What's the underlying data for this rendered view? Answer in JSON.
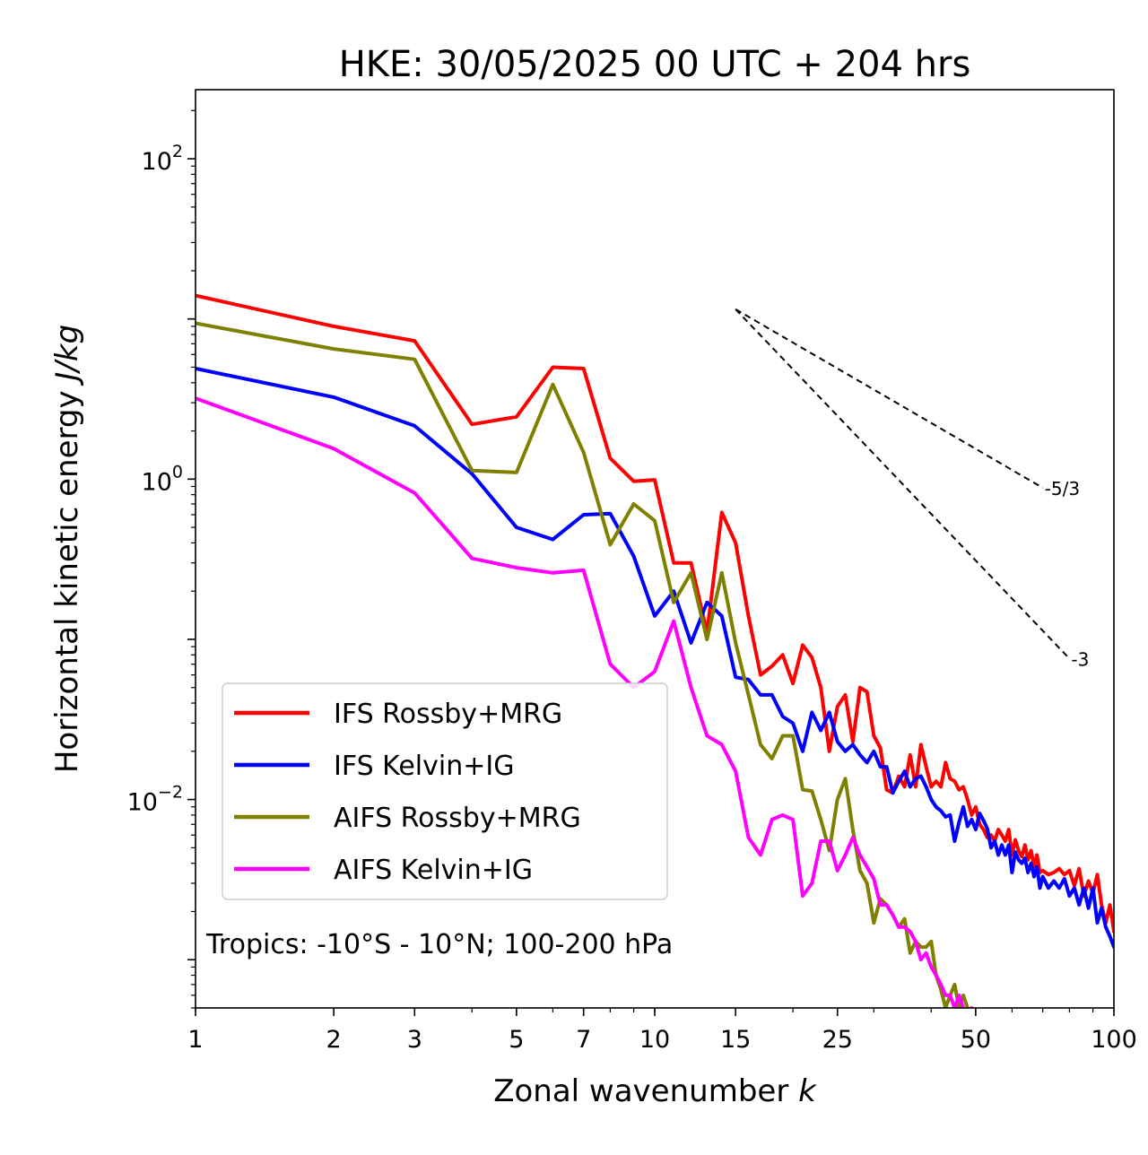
{
  "chart_data": {
    "type": "line",
    "title": "HKE: 30/05/2025 00 UTC + 204 hrs",
    "xlabel": "Zonal wavenumber",
    "xlabel_var": "k",
    "ylabel": "Horizontal kinetic energy",
    "ylabel_unit": "J/kg",
    "xscale": "log",
    "yscale": "log",
    "xlim": [
      1,
      100
    ],
    "ylim": [
      0.0005,
      270
    ],
    "x_ticks": [
      1,
      2,
      3,
      5,
      7,
      10,
      15,
      25,
      50,
      100
    ],
    "y_ticks": [
      {
        "value": 100,
        "base": "10",
        "exp": "2"
      },
      {
        "value": 1,
        "base": "10",
        "exp": "0"
      },
      {
        "value": 0.01,
        "base": "10",
        "exp": "−2"
      }
    ],
    "grid": false,
    "legend_position": "lower-left",
    "annotation": "Tropics: -10°S - 10°N; 100-200 hPa",
    "reference_lines": [
      {
        "label": "-5/3",
        "slope": -1.6667,
        "x_start": 15,
        "y_start": 11.5,
        "x_end": 70
      },
      {
        "label": "-3",
        "slope": -3,
        "x_start": 15,
        "y_start": 11.5,
        "x_end": 80
      }
    ],
    "series": [
      {
        "name": "IFS Rossby+MRG",
        "color": "#ff0000",
        "points": [
          [
            1,
            14.0
          ],
          [
            2,
            9.0
          ],
          [
            3,
            7.3
          ],
          [
            4,
            2.2
          ],
          [
            5,
            2.45
          ],
          [
            6,
            5.0
          ],
          [
            7,
            4.9
          ],
          [
            8,
            1.35
          ],
          [
            9,
            0.97
          ],
          [
            10,
            0.99
          ],
          [
            11,
            0.3
          ],
          [
            12,
            0.3
          ],
          [
            13,
            0.11
          ],
          [
            14,
            0.62
          ],
          [
            15,
            0.4
          ],
          [
            16,
            0.14
          ],
          [
            17,
            0.06
          ],
          [
            18,
            0.068
          ],
          [
            19,
            0.08
          ],
          [
            20,
            0.053
          ],
          [
            21,
            0.092
          ],
          [
            22,
            0.077
          ],
          [
            23,
            0.05
          ],
          [
            24,
            0.02
          ],
          [
            25,
            0.038
          ],
          [
            26,
            0.045
          ],
          [
            27,
            0.023
          ],
          [
            28,
            0.05
          ],
          [
            29,
            0.047
          ],
          [
            30,
            0.025
          ],
          [
            31,
            0.021
          ],
          [
            32,
            0.0115
          ],
          [
            33,
            0.011
          ],
          [
            34,
            0.014
          ],
          [
            35,
            0.012
          ],
          [
            36,
            0.019
          ],
          [
            37,
            0.012
          ],
          [
            38,
            0.022
          ],
          [
            39,
            0.016
          ],
          [
            40,
            0.012
          ],
          [
            41,
            0.013
          ],
          [
            42,
            0.012
          ],
          [
            43,
            0.017
          ],
          [
            44,
            0.0135
          ],
          [
            45,
            0.013
          ],
          [
            46,
            0.0115
          ],
          [
            47,
            0.012
          ],
          [
            48,
            0.01
          ],
          [
            49,
            0.008
          ],
          [
            50,
            0.009
          ],
          [
            51,
            0.007
          ],
          [
            52,
            0.0065
          ],
          [
            53,
            0.0058
          ],
          [
            54,
            0.006
          ],
          [
            55,
            0.0055
          ],
          [
            56,
            0.0065
          ],
          [
            57,
            0.006
          ],
          [
            58,
            0.0055
          ],
          [
            59,
            0.0065
          ],
          [
            60,
            0.0045
          ],
          [
            61,
            0.0056
          ],
          [
            62,
            0.0048
          ],
          [
            63,
            0.0044
          ],
          [
            64,
            0.0052
          ],
          [
            65,
            0.0042
          ],
          [
            66,
            0.0048
          ],
          [
            67,
            0.0038
          ],
          [
            68,
            0.0045
          ],
          [
            69,
            0.0035
          ],
          [
            70,
            0.0036
          ],
          [
            72,
            0.0034
          ],
          [
            74,
            0.0035
          ],
          [
            76,
            0.0037
          ],
          [
            78,
            0.0034
          ],
          [
            80,
            0.0036
          ],
          [
            82,
            0.0029
          ],
          [
            84,
            0.0037
          ],
          [
            86,
            0.0025
          ],
          [
            88,
            0.0031
          ],
          [
            90,
            0.0026
          ],
          [
            92,
            0.0034
          ],
          [
            94,
            0.0022
          ],
          [
            96,
            0.0017
          ],
          [
            98,
            0.0022
          ],
          [
            100,
            0.0015
          ]
        ]
      },
      {
        "name": "IFS Kelvin+IG",
        "color": "#0000ff",
        "points": [
          [
            1,
            4.9
          ],
          [
            2,
            3.25
          ],
          [
            3,
            2.15
          ],
          [
            4,
            1.08
          ],
          [
            5,
            0.5
          ],
          [
            6,
            0.42
          ],
          [
            7,
            0.6
          ],
          [
            8,
            0.61
          ],
          [
            9,
            0.33
          ],
          [
            10,
            0.14
          ],
          [
            11,
            0.2
          ],
          [
            12,
            0.095
          ],
          [
            13,
            0.17
          ],
          [
            14,
            0.14
          ],
          [
            15,
            0.058
          ],
          [
            16,
            0.056
          ],
          [
            17,
            0.045
          ],
          [
            18,
            0.045
          ],
          [
            19,
            0.033
          ],
          [
            20,
            0.03
          ],
          [
            21,
            0.02
          ],
          [
            22,
            0.035
          ],
          [
            23,
            0.027
          ],
          [
            24,
            0.035
          ],
          [
            25,
            0.023
          ],
          [
            26,
            0.02
          ],
          [
            27,
            0.022
          ],
          [
            28,
            0.019
          ],
          [
            29,
            0.017
          ],
          [
            30,
            0.02
          ],
          [
            31,
            0.016
          ],
          [
            32,
            0.016
          ],
          [
            33,
            0.011
          ],
          [
            34,
            0.013
          ],
          [
            35,
            0.015
          ],
          [
            36,
            0.012
          ],
          [
            37,
            0.0135
          ],
          [
            38,
            0.014
          ],
          [
            39,
            0.012
          ],
          [
            40,
            0.01
          ],
          [
            41,
            0.009
          ],
          [
            42,
            0.0085
          ],
          [
            43,
            0.0078
          ],
          [
            44,
            0.008
          ],
          [
            45,
            0.0055
          ],
          [
            46,
            0.0072
          ],
          [
            47,
            0.009
          ],
          [
            48,
            0.0068
          ],
          [
            49,
            0.0075
          ],
          [
            50,
            0.0065
          ],
          [
            51,
            0.0082
          ],
          [
            52,
            0.0074
          ],
          [
            53,
            0.0066
          ],
          [
            54,
            0.005
          ],
          [
            55,
            0.0055
          ],
          [
            56,
            0.0045
          ],
          [
            57,
            0.0052
          ],
          [
            58,
            0.0045
          ],
          [
            59,
            0.0052
          ],
          [
            60,
            0.0035
          ],
          [
            61,
            0.0047
          ],
          [
            62,
            0.0042
          ],
          [
            63,
            0.004
          ],
          [
            64,
            0.0043
          ],
          [
            65,
            0.0035
          ],
          [
            66,
            0.004
          ],
          [
            67,
            0.0033
          ],
          [
            68,
            0.0038
          ],
          [
            69,
            0.0028
          ],
          [
            70,
            0.0033
          ],
          [
            72,
            0.0028
          ],
          [
            74,
            0.0031
          ],
          [
            76,
            0.0028
          ],
          [
            78,
            0.0032
          ],
          [
            80,
            0.0025
          ],
          [
            82,
            0.0028
          ],
          [
            84,
            0.0022
          ],
          [
            86,
            0.0028
          ],
          [
            88,
            0.0021
          ],
          [
            90,
            0.0028
          ],
          [
            92,
            0.0017
          ],
          [
            94,
            0.0021
          ],
          [
            96,
            0.0016
          ],
          [
            98,
            0.0014
          ],
          [
            100,
            0.0012
          ]
        ]
      },
      {
        "name": "AIFS Rossby+MRG",
        "color": "#808000",
        "points": [
          [
            1,
            9.4
          ],
          [
            2,
            6.5
          ],
          [
            3,
            5.6
          ],
          [
            4,
            1.13
          ],
          [
            5,
            1.1
          ],
          [
            6,
            3.9
          ],
          [
            7,
            1.47
          ],
          [
            8,
            0.39
          ],
          [
            9,
            0.7
          ],
          [
            10,
            0.55
          ],
          [
            11,
            0.17
          ],
          [
            12,
            0.26
          ],
          [
            13,
            0.1
          ],
          [
            14,
            0.26
          ],
          [
            15,
            0.095
          ],
          [
            16,
            0.045
          ],
          [
            17,
            0.022
          ],
          [
            18,
            0.018
          ],
          [
            19,
            0.025
          ],
          [
            20,
            0.025
          ],
          [
            21,
            0.0115
          ],
          [
            22,
            0.0113
          ],
          [
            23,
            0.0075
          ],
          [
            24,
            0.0048
          ],
          [
            25,
            0.01
          ],
          [
            26,
            0.0135
          ],
          [
            27,
            0.0065
          ],
          [
            28,
            0.0036
          ],
          [
            29,
            0.003
          ],
          [
            30,
            0.0017
          ],
          [
            31,
            0.0024
          ],
          [
            32,
            0.0022
          ],
          [
            33,
            0.0019
          ],
          [
            34,
            0.0016
          ],
          [
            35,
            0.0018
          ],
          [
            36,
            0.0011
          ],
          [
            37,
            0.0013
          ],
          [
            38,
            0.0012
          ],
          [
            39,
            0.0012
          ],
          [
            40,
            0.0013
          ],
          [
            41,
            0.0008
          ],
          [
            42,
            0.00065
          ],
          [
            43,
            0.0005
          ],
          [
            44,
            0.0006
          ],
          [
            45,
            0.0007
          ],
          [
            46,
            0.0005
          ],
          [
            47,
            0.0006
          ],
          [
            48,
            0.0005
          ]
        ]
      },
      {
        "name": "AIFS Kelvin+IG",
        "color": "#ff00ff",
        "points": [
          [
            1,
            3.2
          ],
          [
            2,
            1.55
          ],
          [
            3,
            0.82
          ],
          [
            4,
            0.32
          ],
          [
            5,
            0.28
          ],
          [
            6,
            0.26
          ],
          [
            7,
            0.27
          ],
          [
            8,
            0.07
          ],
          [
            9,
            0.05
          ],
          [
            10,
            0.063
          ],
          [
            11,
            0.13
          ],
          [
            12,
            0.05
          ],
          [
            13,
            0.025
          ],
          [
            14,
            0.022
          ],
          [
            15,
            0.015
          ],
          [
            16,
            0.0058
          ],
          [
            17,
            0.0045
          ],
          [
            18,
            0.0075
          ],
          [
            19,
            0.008
          ],
          [
            20,
            0.0075
          ],
          [
            21,
            0.0025
          ],
          [
            22,
            0.003
          ],
          [
            23,
            0.0055
          ],
          [
            24,
            0.0055
          ],
          [
            25,
            0.0036
          ],
          [
            26,
            0.0045
          ],
          [
            27,
            0.0058
          ],
          [
            28,
            0.0045
          ],
          [
            29,
            0.0038
          ],
          [
            30,
            0.0032
          ],
          [
            31,
            0.0022
          ],
          [
            32,
            0.0022
          ],
          [
            33,
            0.0019
          ],
          [
            34,
            0.0016
          ],
          [
            35,
            0.0016
          ],
          [
            36,
            0.0015
          ],
          [
            37,
            0.0013
          ],
          [
            38,
            0.001
          ],
          [
            39,
            0.0011
          ],
          [
            40,
            0.0009
          ],
          [
            41,
            0.0008
          ],
          [
            42,
            0.0007
          ],
          [
            43,
            0.0006
          ],
          [
            44,
            0.0006
          ],
          [
            45,
            0.0005
          ],
          [
            46,
            0.0006
          ],
          [
            47,
            0.0005
          ],
          [
            48,
            0.0004
          ],
          [
            49,
            0.0005
          ],
          [
            50,
            0.0004
          ]
        ]
      }
    ]
  }
}
